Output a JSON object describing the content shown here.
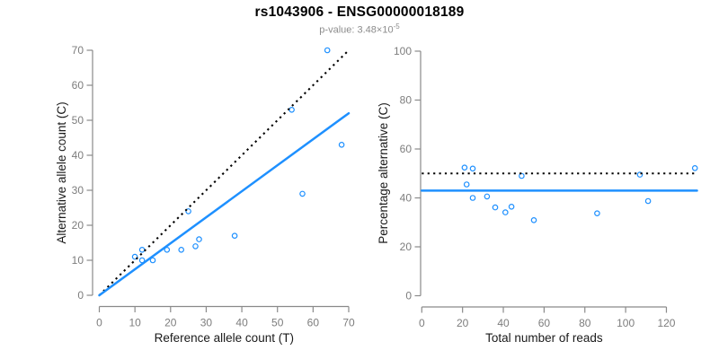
{
  "header": {
    "title": "rs1043906 - ENSG00000018189",
    "pvalue_label": "p-value: 3.48×10",
    "pvalue_exponent": "-5"
  },
  "colors": {
    "point_blue": "#1E90FF",
    "line_blue": "#1E90FF",
    "identity_black": "#000000",
    "axis_gray": "#8A8A8A",
    "tick_label_gray": "#7D7D7D",
    "axis_title_black": "#1A1A1A",
    "title_black": "#000000",
    "subtitle_gray": "#8C8C8C"
  },
  "chart_data": [
    {
      "type": "scatter",
      "title": "",
      "xlabel": "Reference allele count (T)",
      "ylabel": "Alternative allele count (C)",
      "xlim": [
        0,
        70
      ],
      "ylim": [
        0,
        70
      ],
      "xticks": [
        0,
        10,
        20,
        30,
        40,
        50,
        60,
        70
      ],
      "yticks": [
        0,
        10,
        20,
        30,
        40,
        50,
        60,
        70
      ],
      "grid": false,
      "points": [
        [
          10,
          11
        ],
        [
          12,
          10
        ],
        [
          12,
          13
        ],
        [
          15,
          10
        ],
        [
          19,
          13
        ],
        [
          23,
          13
        ],
        [
          25,
          24
        ],
        [
          27,
          14
        ],
        [
          28,
          16
        ],
        [
          38,
          17
        ],
        [
          54,
          53
        ],
        [
          57,
          29
        ],
        [
          64,
          70
        ],
        [
          68,
          43
        ]
      ],
      "lines": [
        {
          "name": "identity-line",
          "style": "dotted",
          "points": [
            [
              0,
              0
            ],
            [
              70,
              70
            ]
          ]
        },
        {
          "name": "fit-line",
          "style": "solid",
          "points": [
            [
              0,
              0
            ],
            [
              70,
              52
            ]
          ]
        }
      ]
    },
    {
      "type": "scatter",
      "title": "",
      "xlabel": "Total number of reads",
      "ylabel": "Percentage alternative (C)",
      "xlim": [
        0,
        135
      ],
      "ylim": [
        0,
        100
      ],
      "xticks": [
        0,
        20,
        40,
        60,
        80,
        100,
        120
      ],
      "yticks": [
        0,
        20,
        40,
        60,
        80,
        100
      ],
      "grid": false,
      "points": [
        [
          21,
          52.4
        ],
        [
          22,
          45.5
        ],
        [
          25,
          40
        ],
        [
          25,
          52
        ],
        [
          32,
          40.6
        ],
        [
          36,
          36.1
        ],
        [
          41,
          34.1
        ],
        [
          44,
          36.4
        ],
        [
          49,
          49
        ],
        [
          55,
          30.9
        ],
        [
          86,
          33.7
        ],
        [
          107,
          49.5
        ],
        [
          111,
          38.7
        ],
        [
          134,
          52.2
        ]
      ],
      "lines": [
        {
          "name": "expected-50pct-line",
          "style": "dotted",
          "points": [
            [
              0,
              50
            ],
            [
              135,
              50
            ]
          ]
        },
        {
          "name": "mean-pct-line",
          "style": "solid",
          "points": [
            [
              0,
              43
            ],
            [
              135,
              43
            ]
          ]
        }
      ]
    }
  ]
}
